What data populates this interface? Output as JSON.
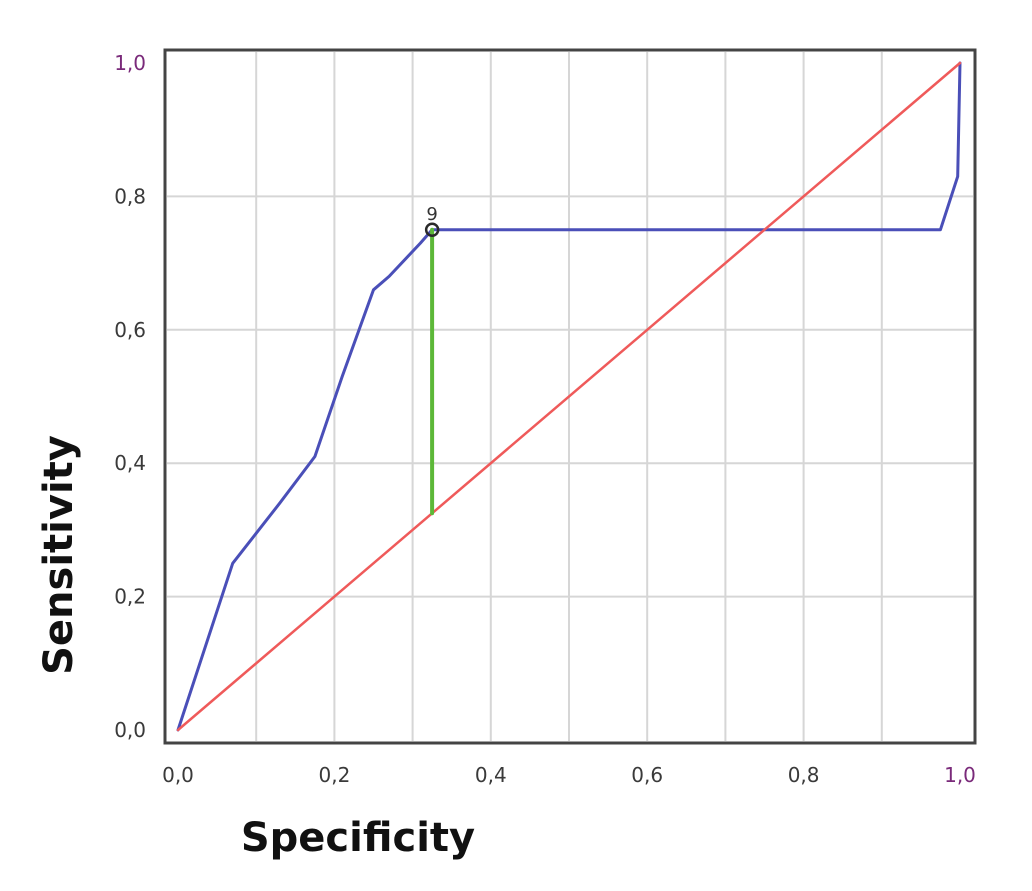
{
  "chart_data": {
    "type": "line",
    "xlabel": "Specificity",
    "ylabel": "Sensitivity",
    "xlim": [
      0.0,
      1.0
    ],
    "ylim": [
      0.0,
      1.0
    ],
    "x_ticks": [
      "0,0",
      "0,2",
      "0,4",
      "0,6",
      "0,8",
      "1,0"
    ],
    "y_ticks": [
      "0,0",
      "0,2",
      "0,4",
      "0,6",
      "0,8",
      "1,0"
    ],
    "grid": true,
    "series": [
      {
        "color": "#4a4fb8",
        "x": [
          0.0,
          0.07,
          0.13,
          0.175,
          0.21,
          0.25,
          0.27,
          0.31,
          0.325,
          0.34,
          0.975,
          0.997,
          1.0
        ],
        "y": [
          0.0,
          0.25,
          0.34,
          0.41,
          0.53,
          0.66,
          0.68,
          0.73,
          0.75,
          0.75,
          0.75,
          0.83,
          1.0
        ]
      },
      {
        "color": "#ef5a5a",
        "x": [
          0.0,
          1.0
        ],
        "y": [
          0.0,
          1.0
        ]
      },
      {
        "color": "#5cb838",
        "x": [
          0.325,
          0.325
        ],
        "y": [
          0.325,
          0.75
        ]
      }
    ],
    "annotations": [
      {
        "text": "9",
        "x": 0.325,
        "y": 0.75
      }
    ]
  }
}
